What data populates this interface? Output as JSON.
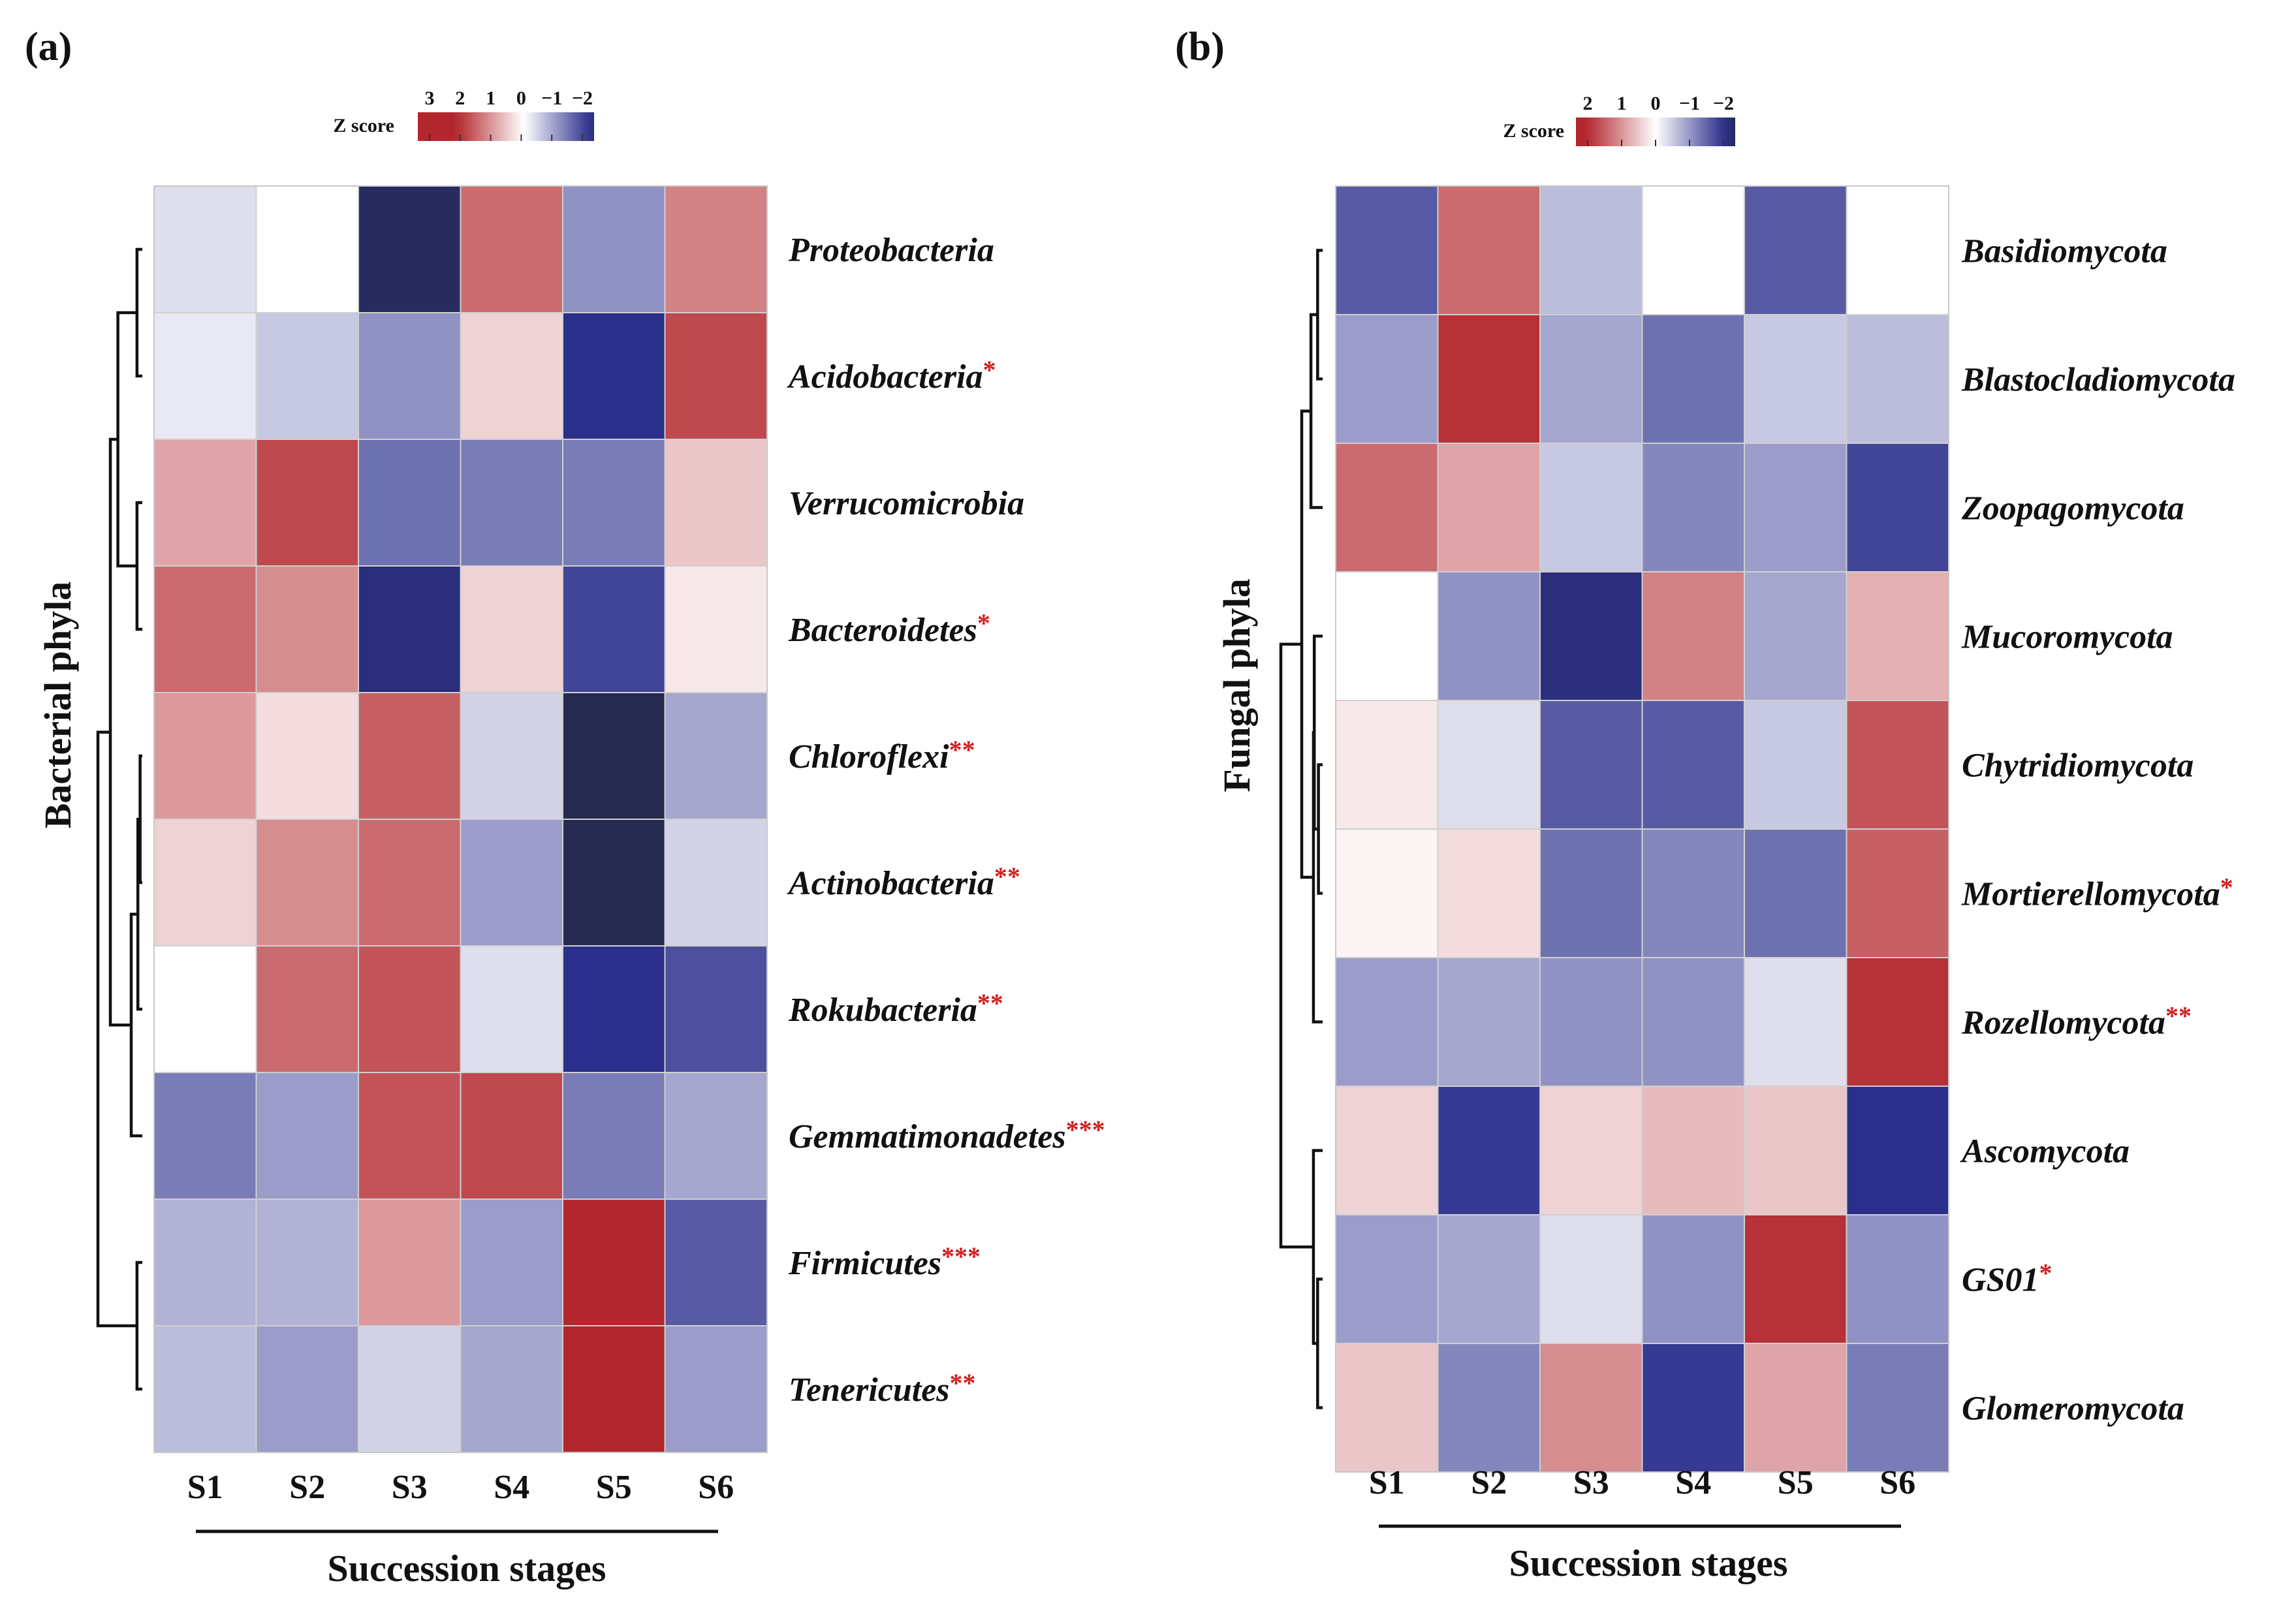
{
  "chart_data": [
    {
      "type": "heatmap",
      "panel_label": "(a)",
      "title": "",
      "xlabel": "Succession stages",
      "ylabel": "Bacterial  phyla",
      "columns": [
        "S1",
        "S2",
        "S3",
        "S4",
        "S5",
        "S6"
      ],
      "rows": [
        {
          "name": "Proteobacteria",
          "sig": "",
          "values": [
            -0.3,
            0.0,
            -2.2,
            1.3,
            -1.0,
            1.1
          ]
        },
        {
          "name": "Acidobacteria",
          "sig": "*",
          "values": [
            -0.2,
            -0.5,
            -1.0,
            0.4,
            -1.9,
            1.6
          ]
        },
        {
          "name": "Verrucomicrobia",
          "sig": "",
          "values": [
            0.8,
            1.6,
            -1.3,
            -1.2,
            -1.2,
            0.5
          ]
        },
        {
          "name": "Bacteroidetes",
          "sig": "*",
          "values": [
            1.3,
            1.0,
            -2.0,
            0.4,
            -1.7,
            0.2
          ]
        },
        {
          "name": "Chloroflexi",
          "sig": "**",
          "values": [
            0.9,
            0.3,
            1.4,
            -0.4,
            -2.3,
            -0.8
          ]
        },
        {
          "name": "Actinobacteria",
          "sig": "**",
          "values": [
            0.4,
            1.0,
            1.3,
            -0.9,
            -2.3,
            -0.4
          ]
        },
        {
          "name": "Rokubacteria",
          "sig": "**",
          "values": [
            0.0,
            1.3,
            1.5,
            -0.3,
            -1.9,
            -1.6
          ]
        },
        {
          "name": "Gemmatimonadetes",
          "sig": "***",
          "values": [
            -1.2,
            -0.9,
            1.5,
            1.6,
            -1.2,
            -0.8
          ]
        },
        {
          "name": "Firmicutes",
          "sig": "***",
          "values": [
            -0.7,
            -0.7,
            0.9,
            -0.9,
            1.9,
            -1.5
          ]
        },
        {
          "name": "Tenericutes",
          "sig": "**",
          "values": [
            -0.6,
            -0.9,
            -0.4,
            -0.8,
            2.4,
            -0.9
          ]
        }
      ],
      "colorbar": {
        "label": "Z score",
        "ticks": [
          "3",
          "2",
          "1",
          "0",
          "−1",
          "−2"
        ],
        "range": [
          3,
          -2
        ]
      },
      "colors": {
        "high": "#b2272d",
        "mid": "#ffffff",
        "low": "#2b2f8c",
        "extreme_low": "#262a4f"
      }
    },
    {
      "type": "heatmap",
      "panel_label": "(b)",
      "title": "",
      "xlabel": "Succession stages",
      "ylabel": "Fungal  phyla",
      "columns": [
        "S1",
        "S2",
        "S3",
        "S4",
        "S5",
        "S6"
      ],
      "rows": [
        {
          "name": "Basidiomycota",
          "sig": "",
          "values": [
            -1.5,
            1.3,
            -0.6,
            0.0,
            -1.5,
            0.0
          ]
        },
        {
          "name": "Blastocladiomycota",
          "sig": "",
          "values": [
            -0.9,
            1.8,
            -0.8,
            -1.3,
            -0.5,
            -0.6
          ]
        },
        {
          "name": "Zoopagomycota",
          "sig": "",
          "values": [
            1.3,
            0.8,
            -0.5,
            -1.1,
            -0.9,
            -1.7
          ]
        },
        {
          "name": "Mucoromycota",
          "sig": "",
          "values": [
            0.0,
            -1.0,
            -2.0,
            1.1,
            -0.8,
            0.7
          ]
        },
        {
          "name": "Chytridiomycota",
          "sig": "",
          "values": [
            0.2,
            -0.3,
            -1.5,
            -1.5,
            -0.5,
            1.5
          ]
        },
        {
          "name": "Mortierellomycota",
          "sig": "*",
          "values": [
            0.1,
            0.3,
            -1.3,
            -1.1,
            -1.3,
            1.4
          ]
        },
        {
          "name": "Rozellomycota",
          "sig": "**",
          "values": [
            -0.9,
            -0.8,
            -1.0,
            -1.0,
            -0.3,
            1.8
          ]
        },
        {
          "name": "Ascomycota",
          "sig": "",
          "values": [
            0.4,
            -1.8,
            0.4,
            0.6,
            0.5,
            -1.9
          ]
        },
        {
          "name": "GS01",
          "sig": "*",
          "values": [
            -0.9,
            -0.8,
            -0.3,
            -1.0,
            1.8,
            -1.0
          ]
        },
        {
          "name": "Glomeromycota",
          "sig": "",
          "values": [
            0.5,
            -1.1,
            1.0,
            -1.8,
            0.8,
            -1.2
          ]
        }
      ],
      "colorbar": {
        "label": "Z score",
        "ticks": [
          "2",
          "1",
          "0",
          "−1",
          "−2"
        ],
        "range": [
          2.2,
          -2.2
        ]
      },
      "colors": {
        "high": "#b2272d",
        "mid": "#ffffff",
        "low": "#2b2f8c",
        "extreme_low": "#262a4f"
      }
    }
  ]
}
